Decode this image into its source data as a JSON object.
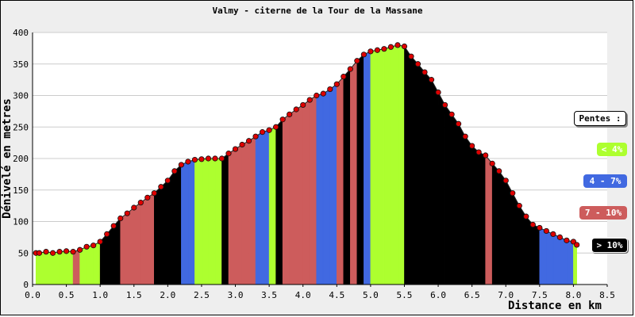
{
  "colors": {
    "lt4": "#adff2f",
    "p4to7": "#4169e1",
    "p7to10": "#cd5c5c",
    "gt10": "#000000",
    "marker": "#e00000"
  },
  "legend": {
    "title": "Pentes :",
    "items": [
      {
        "label": "< 4%",
        "color": "#adff2f"
      },
      {
        "label": "4 - 7%",
        "color": "#4169e1"
      },
      {
        "label": "7 - 10%",
        "color": "#cd5c5c"
      },
      {
        "label": "> 10%",
        "color": "#000000"
      }
    ]
  },
  "chart_data": {
    "type": "area",
    "title": "Valmy - citerne de la Tour de la Massane",
    "xlabel": "Distance en km",
    "ylabel": "Dénivelé en metres",
    "xlim": [
      0,
      8.5
    ],
    "ylim": [
      0,
      400
    ],
    "xticks": [
      "0.0",
      "0.5",
      "1.0",
      "1.5",
      "2.0",
      "2.5",
      "3.0",
      "3.5",
      "4.0",
      "4.5",
      "5.0",
      "5.5",
      "6.0",
      "6.5",
      "7.0",
      "7.5",
      "8.0",
      "8.5"
    ],
    "yticks": [
      "0",
      "50",
      "100",
      "150",
      "200",
      "250",
      "300",
      "350",
      "400"
    ],
    "grid": true,
    "legend_position": "right",
    "series": [
      {
        "x": [
          0.05,
          0.1,
          0.2,
          0.3,
          0.4,
          0.5,
          0.6,
          0.7,
          0.8,
          0.9,
          1.0,
          1.1,
          1.2,
          1.3,
          1.4,
          1.5,
          1.6,
          1.7,
          1.8,
          1.9,
          2.0,
          2.1,
          2.2,
          2.3,
          2.4,
          2.5,
          2.6,
          2.7,
          2.8,
          2.9,
          3.0,
          3.1,
          3.2,
          3.3,
          3.4,
          3.5,
          3.6,
          3.7,
          3.8,
          3.9,
          4.0,
          4.1,
          4.2,
          4.3,
          4.4,
          4.5,
          4.6,
          4.7,
          4.8,
          4.9,
          5.0,
          5.1,
          5.2,
          5.3,
          5.4,
          5.5,
          5.6,
          5.7,
          5.8,
          5.9,
          6.0,
          6.1,
          6.2,
          6.3,
          6.4,
          6.5,
          6.6,
          6.7,
          6.8,
          6.9,
          7.0,
          7.1,
          7.2,
          7.3,
          7.4,
          7.5,
          7.6,
          7.7,
          7.8,
          7.9,
          8.0,
          8.05
        ],
        "y": [
          50,
          50,
          52,
          50,
          52,
          53,
          52,
          55,
          60,
          62,
          68,
          80,
          93,
          105,
          113,
          122,
          130,
          138,
          145,
          155,
          165,
          180,
          190,
          195,
          198,
          199,
          200,
          200,
          200,
          208,
          215,
          222,
          228,
          235,
          242,
          245,
          250,
          262,
          270,
          278,
          285,
          293,
          300,
          303,
          310,
          318,
          330,
          342,
          355,
          365,
          370,
          372,
          374,
          377,
          380,
          378,
          362,
          350,
          337,
          325,
          305,
          285,
          270,
          255,
          235,
          220,
          210,
          205,
          192,
          180,
          165,
          145,
          125,
          108,
          95,
          90,
          85,
          80,
          75,
          70,
          68,
          63
        ],
        "slope_classes": [
          "lt4",
          "lt4",
          "lt4",
          "lt4",
          "lt4",
          "lt4",
          "p7to10",
          "lt4",
          "lt4",
          "lt4",
          "gt10",
          "gt10",
          "gt10",
          "p7to10",
          "p7to10",
          "p7to10",
          "p7to10",
          "p7to10",
          "gt10",
          "gt10",
          "gt10",
          "gt10",
          "p4to7",
          "p4to7",
          "lt4",
          "lt4",
          "lt4",
          "lt4",
          "gt10",
          "p7to10",
          "p7to10",
          "p7to10",
          "p7to10",
          "p4to7",
          "p4to7",
          "lt4",
          "gt10",
          "p7to10",
          "p7to10",
          "p7to10",
          "p7to10",
          "p7to10",
          "p4to7",
          "p4to7",
          "p4to7",
          "p7to10",
          "gt10",
          "p7to10",
          "gt10",
          "p4to7",
          "lt4",
          "lt4",
          "lt4",
          "lt4",
          "lt4",
          "gt10",
          "gt10",
          "gt10",
          "gt10",
          "gt10",
          "gt10",
          "gt10",
          "gt10",
          "gt10",
          "gt10",
          "gt10",
          "gt10",
          "p7to10",
          "gt10",
          "gt10",
          "gt10",
          "gt10",
          "gt10",
          "gt10",
          "gt10",
          "p4to7",
          "p4to7",
          "p4to7",
          "p4to7",
          "p4to7",
          "lt4",
          "lt4"
        ]
      }
    ]
  }
}
